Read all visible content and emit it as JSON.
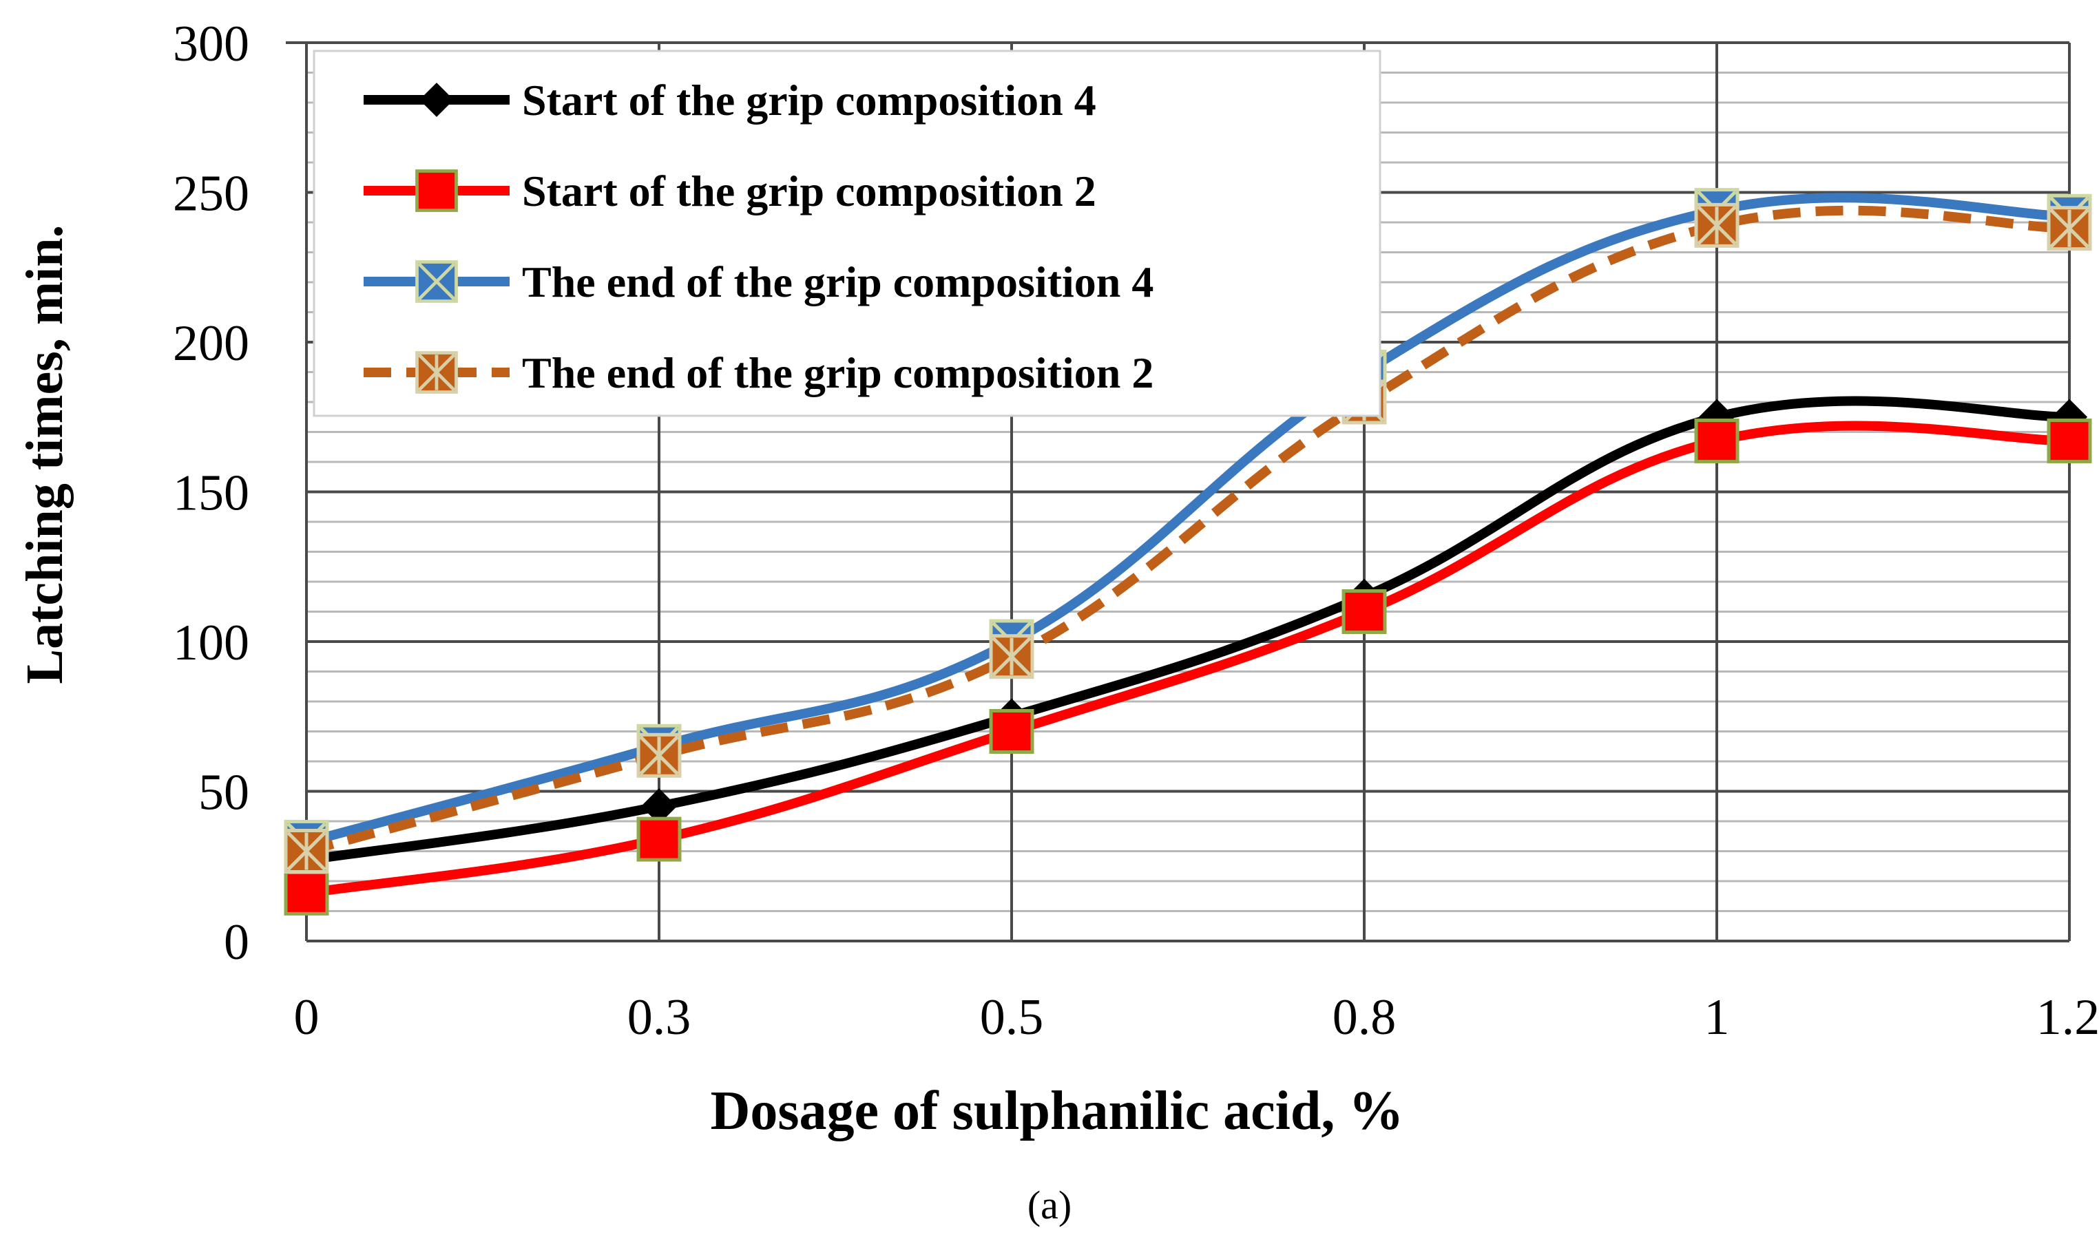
{
  "chart_data": {
    "type": "line",
    "title": "",
    "caption": "(a)",
    "xlabel": "Dosage of sulphanilic acid, %",
    "ylabel": "Latching times,  min.",
    "categories": [
      "0",
      "0.3",
      "0.5",
      "0.8",
      "1",
      "1.2"
    ],
    "ylim": [
      0,
      300
    ],
    "yticks": [
      0,
      50,
      100,
      150,
      200,
      250,
      300
    ],
    "minor_grid_step": 10,
    "grid": true,
    "legend_position": "top-left",
    "series": [
      {
        "name": "Start of the grip composition 4",
        "values": [
          27,
          45,
          75,
          115,
          175,
          175
        ],
        "color": "#000000",
        "marker": "diamond",
        "dash": "solid",
        "marker_fill": "#000000",
        "marker_stroke": "#000000"
      },
      {
        "name": "Start of the grip composition 2",
        "values": [
          16,
          34,
          70,
          110,
          167,
          167
        ],
        "color": "#ff0000",
        "marker": "square",
        "dash": "solid",
        "marker_fill": "#ff0000",
        "marker_stroke": "#8fa84a"
      },
      {
        "name": "The end of the grip composition 4",
        "values": [
          33,
          65,
          100,
          190,
          244,
          242
        ],
        "color": "#3a78c0",
        "marker": "x-square",
        "dash": "solid",
        "marker_fill": "#3a78c0",
        "marker_stroke": "#cfd8a0"
      },
      {
        "name": "The end of the grip composition 2",
        "values": [
          30,
          62,
          95,
          180,
          239,
          238
        ],
        "color": "#c06018",
        "marker": "star-square",
        "dash": "dashed",
        "marker_fill": "#c06018",
        "marker_stroke": "#d8d0a8"
      }
    ]
  }
}
